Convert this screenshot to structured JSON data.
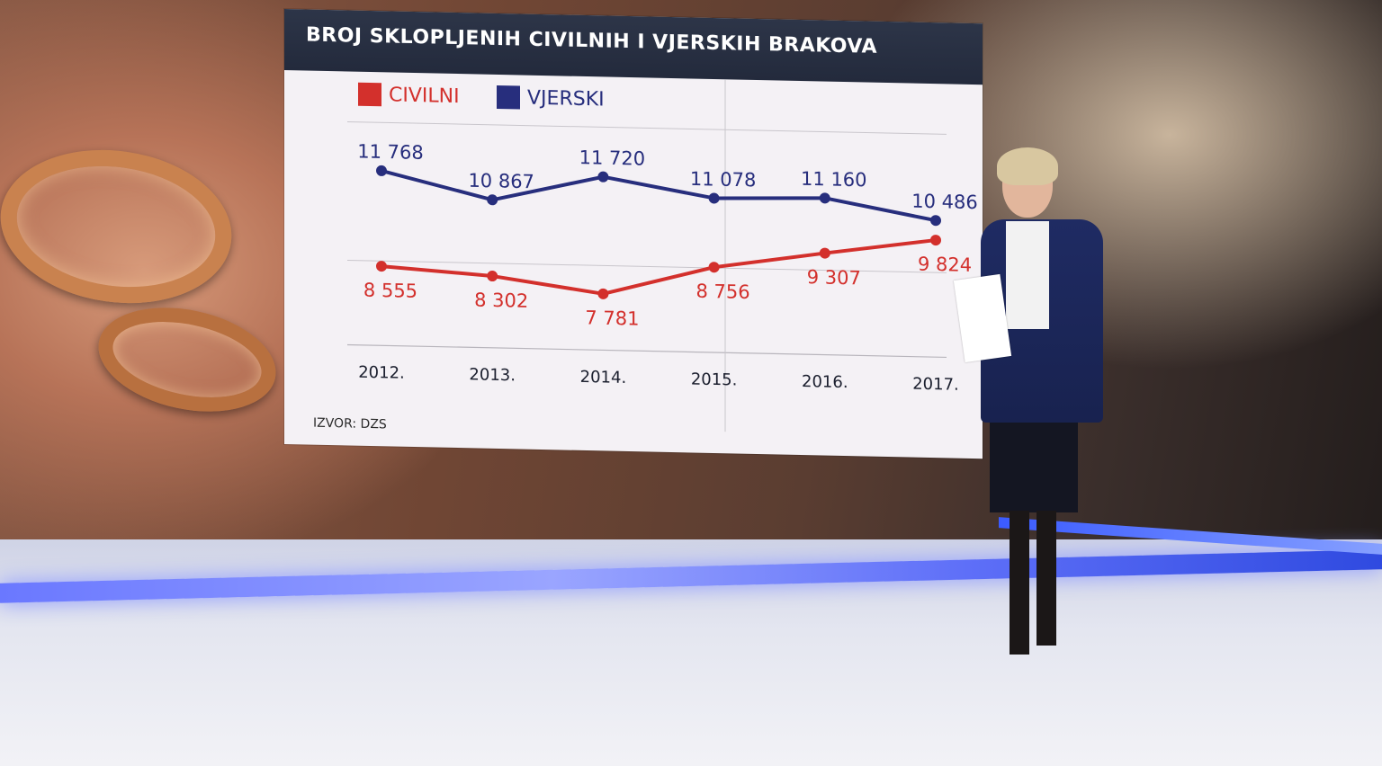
{
  "chart_data": {
    "type": "line",
    "title": "BROJ SKLOPLJENIH CIVILNIH  I VJERSKIH BRAKOVA",
    "source": "IZVOR: DZS",
    "categories": [
      "2012.",
      "2013.",
      "2014.",
      "2015.",
      "2016.",
      "2017."
    ],
    "series": [
      {
        "name": "VJERSKI",
        "color": "#272e7d",
        "values": [
          11768,
          10867,
          11720,
          11078,
          11160,
          10486
        ],
        "labels": [
          "11 768",
          "10 867",
          "11 720",
          "11 078",
          "11 160",
          "10 486"
        ]
      },
      {
        "name": "CIVILNI",
        "color": "#d3302c",
        "values": [
          8555,
          8302,
          7781,
          8756,
          9307,
          9824
        ],
        "labels": [
          "8 555",
          "8 302",
          "7 781",
          "8 756",
          "9 307",
          "9 824"
        ]
      }
    ],
    "legend_position": "top-left",
    "grid": true
  }
}
